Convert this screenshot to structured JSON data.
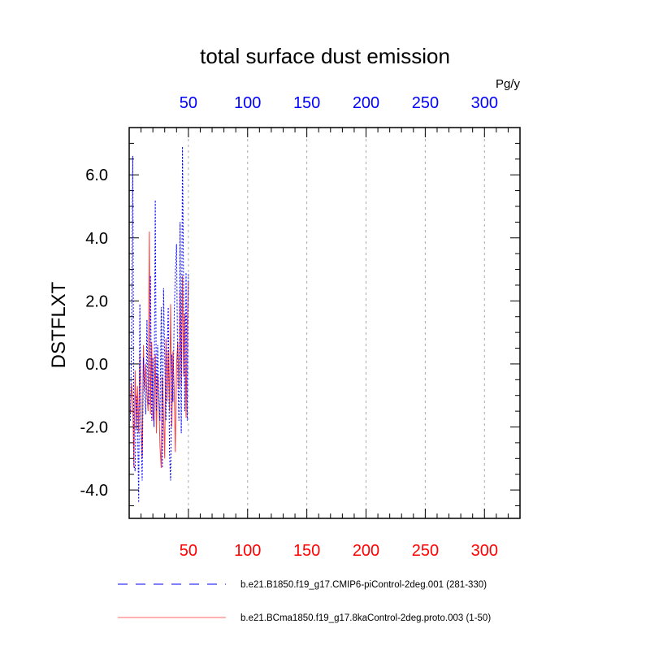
{
  "chart_data": {
    "type": "line",
    "title": "total surface dust emission",
    "ylabel": "DSTFLXT",
    "units": "Pg/y",
    "xlim": [
      0,
      330
    ],
    "ylim": [
      -4.9,
      7.5
    ],
    "xticks": [
      50,
      100,
      150,
      200,
      250,
      300
    ],
    "xtick_labels": [
      "50",
      "100",
      "150",
      "200",
      "250",
      "300"
    ],
    "yticks": [
      -4,
      -2,
      0,
      2,
      4,
      6
    ],
    "ytick_labels": [
      "-4.0",
      "-2.0",
      "0.0",
      "2.0",
      "4.0",
      "6.0"
    ],
    "vertical_grid": true,
    "top_axis_color": "#0000ff",
    "bottom_axis_color": "#ff0000",
    "legend_placement": "below",
    "series": [
      {
        "name": "b.e21.B1850.f19_g17.CMIP6-piControl-2deg.001 (281-330)",
        "color": "#0000ff",
        "dash": "dashed",
        "x": [
          1,
          2,
          3,
          4,
          5,
          6,
          7,
          8,
          9,
          10,
          11,
          12,
          13,
          14,
          15,
          16,
          17,
          18,
          19,
          20,
          21,
          22,
          23,
          24,
          25,
          26,
          27,
          28,
          29,
          30,
          31,
          32,
          33,
          34,
          35,
          36,
          37,
          38,
          39,
          40,
          41,
          42,
          43,
          44,
          45,
          46,
          47,
          48,
          49,
          50
        ],
        "values": [
          -1.8,
          0.8,
          6.6,
          -3.2,
          -3.4,
          -1.0,
          -1.6,
          -4.4,
          1.9,
          -2.0,
          -3.7,
          0.2,
          -0.8,
          -1.6,
          1.4,
          -1.2,
          -1.3,
          2.8,
          -1.8,
          0.2,
          -2.0,
          5.2,
          -1.5,
          0.6,
          -1.0,
          -1.8,
          1.8,
          -3.3,
          2.4,
          0.2,
          -1.8,
          0.3,
          1.8,
          -2.8,
          -3.7,
          0.3,
          -1.2,
          1.5,
          2.9,
          3.8,
          -0.4,
          -1.8,
          4.5,
          -2.2,
          6.9,
          2.3,
          -1.5,
          2.9,
          -1.8,
          2.9
        ]
      },
      {
        "name": "b.e21.BCma1850.f19_g17.8kaControl-2deg.proto.003 (1-50)",
        "color": "#ff0000",
        "dash": "solid",
        "x": [
          1,
          2,
          3,
          4,
          5,
          6,
          7,
          8,
          9,
          10,
          11,
          12,
          13,
          14,
          15,
          16,
          17,
          18,
          19,
          20,
          21,
          22,
          23,
          24,
          25,
          26,
          27,
          28,
          29,
          30,
          31,
          32,
          33,
          34,
          35,
          36,
          37,
          38,
          39,
          40,
          41,
          42,
          43,
          44,
          45,
          46,
          47,
          48,
          49,
          50
        ],
        "values": [
          -1.6,
          -0.6,
          -1.2,
          -3.3,
          -0.2,
          -2.1,
          -0.7,
          -2.2,
          0.3,
          -1.7,
          -3.0,
          0.6,
          -0.9,
          0.0,
          -1.0,
          -1.5,
          4.2,
          -1.6,
          0.7,
          -1.8,
          -1.4,
          0.3,
          -2.2,
          -0.3,
          -1.0,
          -2.6,
          -3.3,
          -0.4,
          -1.6,
          -3.0,
          0.8,
          -1.2,
          0.4,
          -1.5,
          1.9,
          -2.0,
          0.4,
          -0.8,
          -2.8,
          0.0,
          0.7,
          -0.8,
          2.3,
          -0.7,
          2.8,
          -0.4,
          1.6,
          -1.7,
          1.2,
          2.6
        ]
      }
    ]
  }
}
